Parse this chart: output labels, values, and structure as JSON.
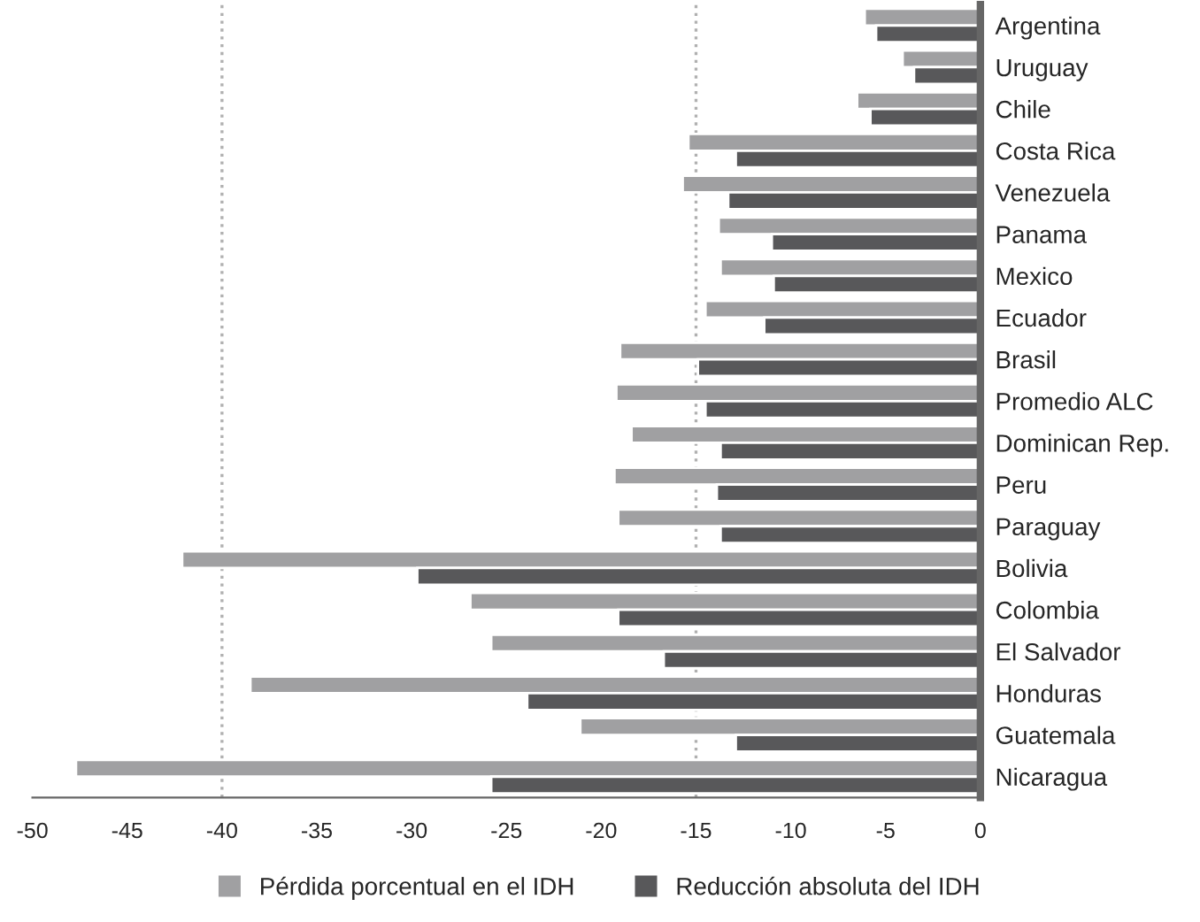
{
  "chart_data": {
    "type": "bar",
    "orientation": "horizontal",
    "categories": [
      "Argentina",
      "Uruguay",
      "Chile",
      "Costa Rica",
      "Venezuela",
      "Panama",
      "Mexico",
      "Ecuador",
      "Brasil",
      "Promedio ALC",
      "Dominican Rep.",
      "Peru",
      "Paraguay",
      "Bolivia",
      "Colombia",
      "El Salvador",
      "Honduras",
      "Guatemala",
      "Nicaragua"
    ],
    "series": [
      {
        "name": "Pérdida porcentual en el IDH",
        "color": "#a0a0a2",
        "values": [
          -6.1,
          -4.1,
          -6.5,
          -15.4,
          -15.7,
          -13.8,
          -13.7,
          -14.5,
          -19.0,
          -19.2,
          -18.4,
          -19.3,
          -19.1,
          -42.1,
          -26.9,
          -25.8,
          -38.5,
          -21.1,
          -47.7
        ]
      },
      {
        "name": "Reducción absoluta del IDH",
        "color": "#58585a",
        "values": [
          -5.5,
          -3.5,
          -5.8,
          -12.9,
          -13.3,
          -11.0,
          -10.9,
          -11.4,
          -14.9,
          -14.5,
          -13.7,
          -13.9,
          -13.7,
          -29.7,
          -19.1,
          -16.7,
          -23.9,
          -12.9,
          -25.8
        ]
      }
    ],
    "xlim": [
      -50,
      0
    ],
    "xticks": [
      -50,
      -45,
      -40,
      -35,
      -30,
      -25,
      -20,
      -15,
      -10,
      -5,
      0
    ],
    "ref_lines": [
      {
        "axis": "x",
        "value": -40,
        "color": "#b0b0b0",
        "line_style": "dotted"
      },
      {
        "axis": "x",
        "value": -15,
        "color": "#b0b0b0",
        "line_style": "dotted"
      }
    ],
    "grid": false,
    "legend": "bottom"
  }
}
